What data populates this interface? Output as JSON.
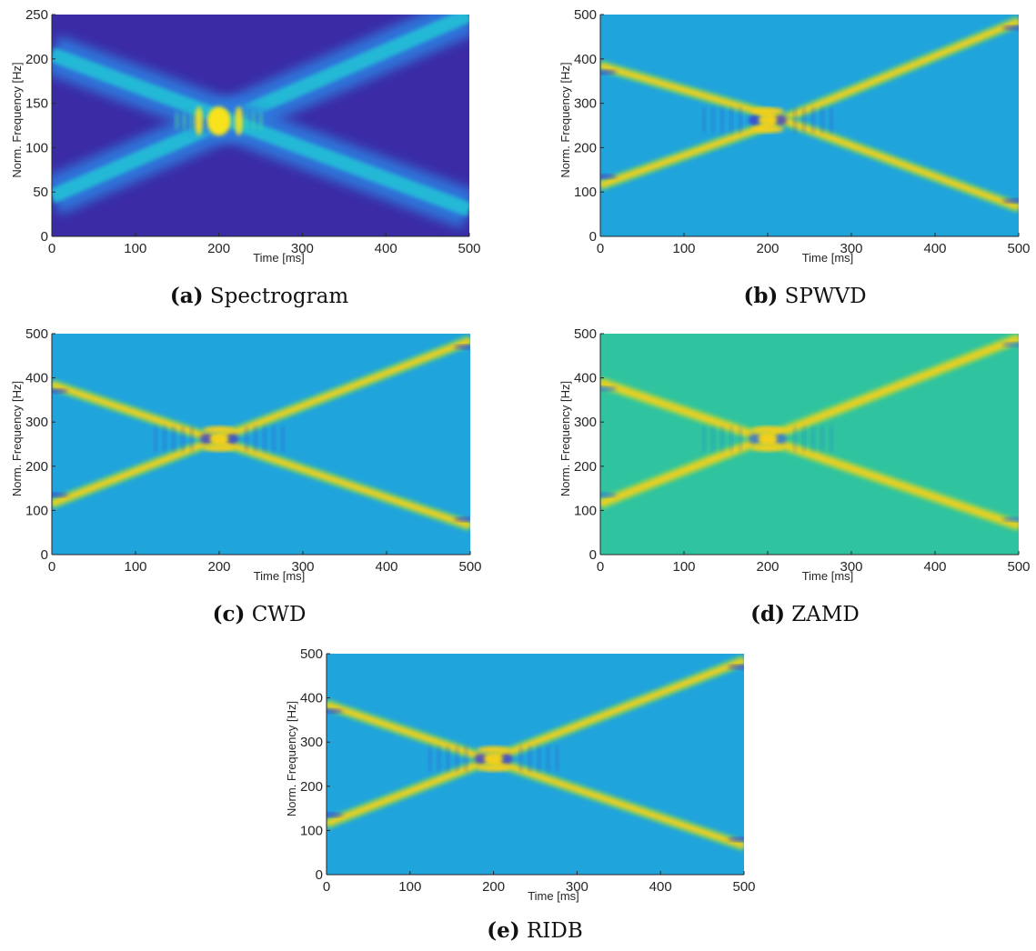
{
  "chart_data": [
    {
      "id": "a",
      "type": "heatmap",
      "style": "spectrogram",
      "caption_tag": "(a)",
      "caption_text": "Spectrogram",
      "xlabel": "Time [ms]",
      "ylabel": "Norm. Frequency [Hz]",
      "xlim": [
        0,
        500
      ],
      "ylim": [
        0,
        250
      ],
      "xticks": [
        0,
        100,
        200,
        300,
        400,
        500
      ],
      "yticks": [
        0,
        50,
        100,
        150,
        200,
        250
      ],
      "colors": {
        "background": "#3b2ba4",
        "ridge": "#22c4d6",
        "peak": "#f7e21a"
      },
      "series": [
        {
          "x": [
            0,
            500
          ],
          "y": [
            45,
            250
          ]
        },
        {
          "x": [
            0,
            500
          ],
          "y": [
            205,
            30
          ]
        }
      ],
      "crossing": {
        "x": 200,
        "y": 130
      }
    },
    {
      "id": "b",
      "type": "heatmap",
      "style": "distribution",
      "caption_tag": "(b)",
      "caption_text": "SPWVD",
      "xlabel": "Time [ms]",
      "ylabel": "Norm. Frequency [Hz]",
      "xlim": [
        0,
        500
      ],
      "ylim": [
        0,
        500
      ],
      "xticks": [
        0,
        100,
        200,
        300,
        400,
        500
      ],
      "yticks": [
        0,
        100,
        200,
        300,
        400,
        500
      ],
      "colors": {
        "background": "#20a4dc",
        "ridge": "#f2cf1e",
        "edge": "#6fcf6b",
        "dark": "#3c3ccf"
      },
      "series": [
        {
          "x": [
            0,
            200,
            500
          ],
          "y": [
            115,
            250,
            485
          ]
        },
        {
          "x": [
            0,
            200,
            500
          ],
          "y": [
            385,
            275,
            65
          ]
        }
      ],
      "crossing": {
        "x": 200,
        "y": 262
      }
    },
    {
      "id": "c",
      "type": "heatmap",
      "style": "distribution",
      "caption_tag": "(c)",
      "caption_text": "CWD",
      "xlabel": "Time [ms]",
      "ylabel": "Norm. Frequency [Hz]",
      "xlim": [
        0,
        500
      ],
      "ylim": [
        0,
        500
      ],
      "xticks": [
        0,
        100,
        200,
        300,
        400,
        500
      ],
      "yticks": [
        0,
        100,
        200,
        300,
        400,
        500
      ],
      "colors": {
        "background": "#20a4dc",
        "ridge": "#f2cf1e",
        "edge": "#6fcf6b",
        "dark": "#3c3ccf"
      },
      "series": [
        {
          "x": [
            0,
            500
          ],
          "y": [
            115,
            485
          ]
        },
        {
          "x": [
            0,
            500
          ],
          "y": [
            385,
            65
          ]
        }
      ],
      "crossing": {
        "x": 200,
        "y": 262
      }
    },
    {
      "id": "d",
      "type": "heatmap",
      "style": "distribution",
      "caption_tag": "(d)",
      "caption_text": "ZAMD",
      "xlabel": "Time [ms]",
      "ylabel": "Norm. Frequency [Hz]",
      "xlim": [
        0,
        500
      ],
      "ylim": [
        0,
        500
      ],
      "xticks": [
        0,
        100,
        200,
        300,
        400,
        500
      ],
      "yticks": [
        0,
        100,
        200,
        300,
        400,
        500
      ],
      "colors": {
        "background": "#2fc3a0",
        "ridge": "#f2cf1e",
        "edge": "#9ad44e",
        "dark": "#2d6fdc"
      },
      "series": [
        {
          "x": [
            0,
            500
          ],
          "y": [
            115,
            490
          ]
        },
        {
          "x": [
            0,
            500
          ],
          "y": [
            390,
            65
          ]
        }
      ],
      "crossing": {
        "x": 200,
        "y": 262
      }
    },
    {
      "id": "e",
      "type": "heatmap",
      "style": "distribution",
      "caption_tag": "(e)",
      "caption_text": "RIDB",
      "xlabel": "Time [ms]",
      "ylabel": "Norm. Frequency [Hz]",
      "xlim": [
        0,
        500
      ],
      "ylim": [
        0,
        500
      ],
      "xticks": [
        0,
        100,
        200,
        300,
        400,
        500
      ],
      "yticks": [
        0,
        100,
        200,
        300,
        400,
        500
      ],
      "colors": {
        "background": "#20a4dc",
        "ridge": "#f2cf1e",
        "edge": "#6fcf6b",
        "dark": "#3c3ccf"
      },
      "series": [
        {
          "x": [
            0,
            500
          ],
          "y": [
            115,
            485
          ]
        },
        {
          "x": [
            0,
            500
          ],
          "y": [
            385,
            65
          ]
        }
      ],
      "crossing": {
        "x": 200,
        "y": 262
      }
    }
  ]
}
